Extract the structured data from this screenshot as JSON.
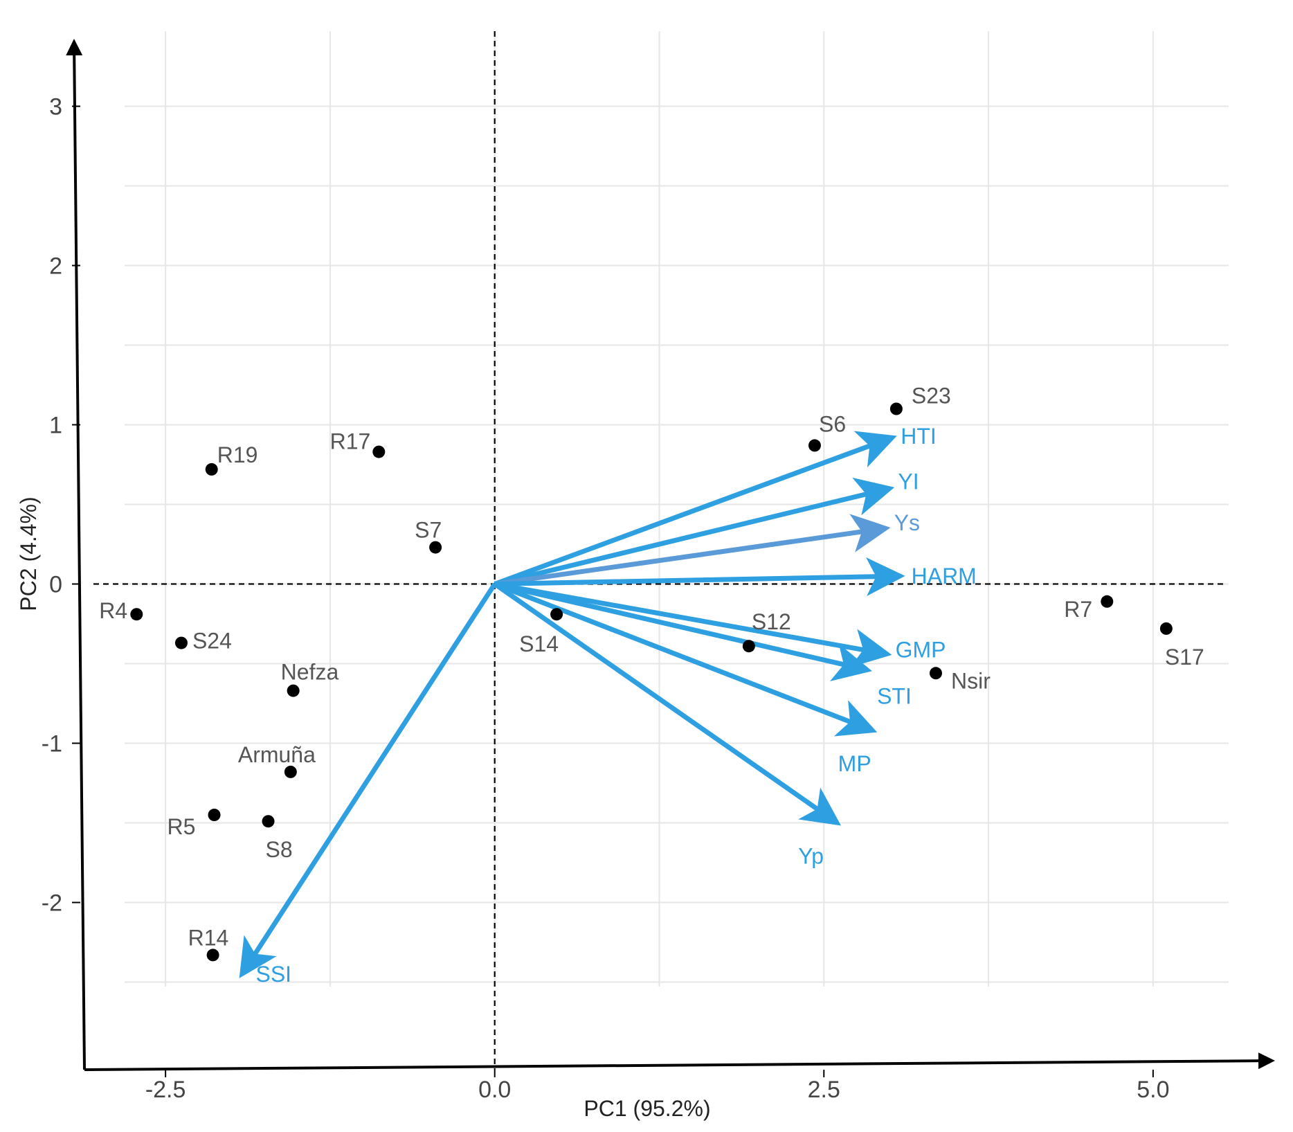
{
  "chart_data": {
    "type": "scatter",
    "subtype": "PCA biplot",
    "xlabel": "PC1 (95.2%)",
    "ylabel": "PC2 (4.4%)",
    "xlim": [
      -3.1,
      5.6
    ],
    "ylim": [
      -3.05,
      3.45
    ],
    "xticks": [
      -2.5,
      0.0,
      2.5,
      5.0
    ],
    "xtick_labels": [
      "-2.5",
      "0.0",
      "2.5",
      "5.0"
    ],
    "yticks": [
      -2,
      -1,
      0,
      1,
      2,
      3
    ],
    "ytick_labels": [
      "-2",
      "-1",
      "0",
      "1",
      "2",
      "3"
    ],
    "point_color": "#000000",
    "vector_color": "#2e9fe0",
    "points": [
      {
        "label": "R19",
        "x": -2.15,
        "y": 0.72
      },
      {
        "label": "R17",
        "x": -0.88,
        "y": 0.83
      },
      {
        "label": "S7",
        "x": -0.45,
        "y": 0.23
      },
      {
        "label": "R4",
        "x": -2.72,
        "y": -0.19
      },
      {
        "label": "S24",
        "x": -2.38,
        "y": -0.37
      },
      {
        "label": "Nefza",
        "x": -1.53,
        "y": -0.67
      },
      {
        "label": "Armuña",
        "x": -1.55,
        "y": -1.18
      },
      {
        "label": "R5",
        "x": -2.13,
        "y": -1.45
      },
      {
        "label": "S8",
        "x": -1.72,
        "y": -1.49
      },
      {
        "label": "R14",
        "x": -2.14,
        "y": -2.33
      },
      {
        "label": "S14",
        "x": 0.47,
        "y": -0.19
      },
      {
        "label": "S12",
        "x": 1.93,
        "y": -0.39
      },
      {
        "label": "S6",
        "x": 2.43,
        "y": 0.87
      },
      {
        "label": "S23",
        "x": 3.05,
        "y": 1.1
      },
      {
        "label": "Nsir",
        "x": 3.35,
        "y": -0.56
      },
      {
        "label": "R7",
        "x": 4.65,
        "y": -0.11
      },
      {
        "label": "S17",
        "x": 5.1,
        "y": -0.28
      }
    ],
    "vectors": [
      {
        "label": "HTI",
        "x": 3.02,
        "y": 0.92
      },
      {
        "label": "YI",
        "x": 3.0,
        "y": 0.6
      },
      {
        "label": "Ys",
        "x": 2.97,
        "y": 0.35,
        "color": "#5a9ad8"
      },
      {
        "label": "HARM",
        "x": 3.08,
        "y": 0.05
      },
      {
        "label": "GMP",
        "x": 2.98,
        "y": -0.44
      },
      {
        "label": "STI",
        "x": 2.83,
        "y": -0.54
      },
      {
        "label": "MP",
        "x": 2.87,
        "y": -0.92
      },
      {
        "label": "Yp",
        "x": 2.6,
        "y": -1.5
      },
      {
        "label": "SSI",
        "x": -1.92,
        "y": -2.45
      }
    ]
  }
}
